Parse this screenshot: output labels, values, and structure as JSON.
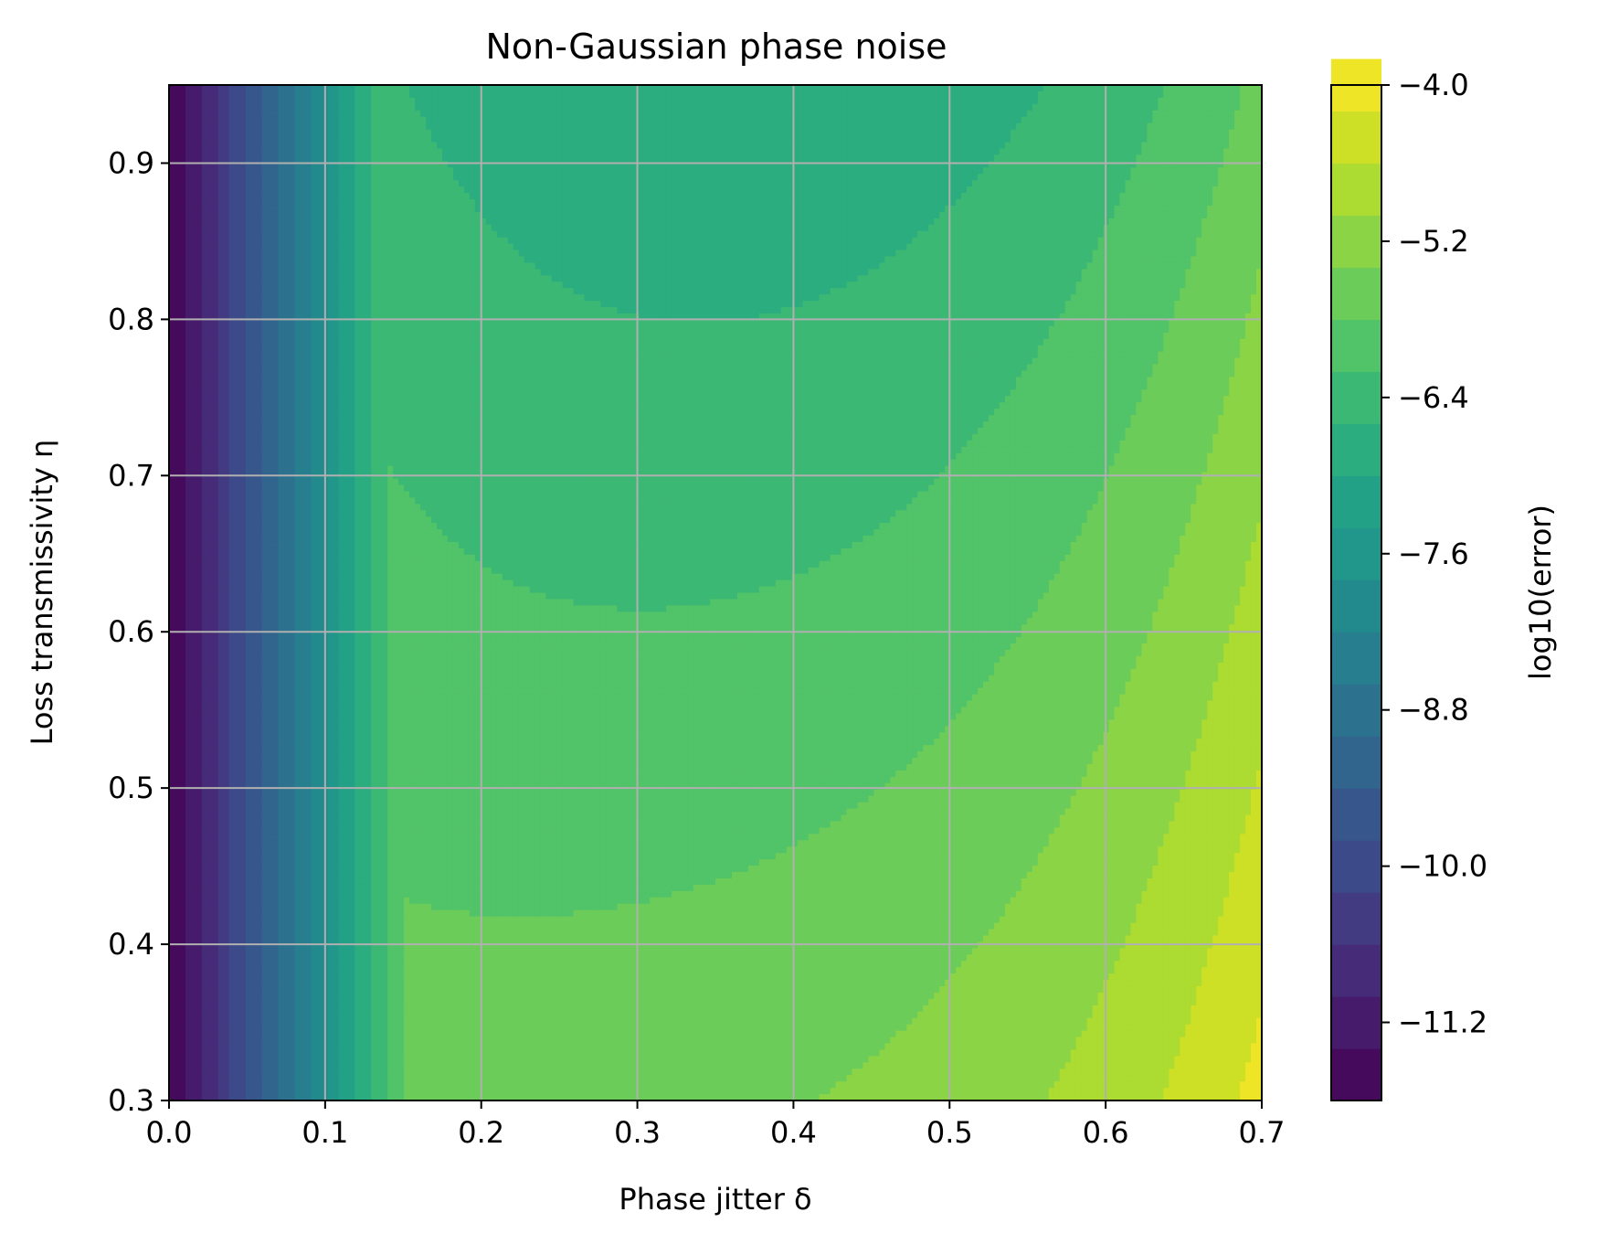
{
  "chart_data": {
    "type": "heatmap",
    "title": "Non-Gaussian phase noise",
    "xlabel": "Phase jitter δ",
    "ylabel": "Loss transmissivity η",
    "colorbar_label": "log10(error)",
    "xlim": [
      0.0,
      0.7
    ],
    "ylim": [
      0.3,
      0.95
    ],
    "x_ticks": [
      "0.0",
      "0.1",
      "0.2",
      "0.3",
      "0.4",
      "0.5",
      "0.6",
      "0.7"
    ],
    "y_ticks": [
      "0.3",
      "0.4",
      "0.5",
      "0.6",
      "0.7",
      "0.8",
      "0.9"
    ],
    "colorbar_ticks": [
      "−4.0",
      "−5.2",
      "−6.4",
      "−7.6",
      "−8.8",
      "−10.0",
      "−11.2"
    ],
    "colorbar_range": [
      -11.8,
      -4.0
    ],
    "levels_step": 0.4,
    "grid": true,
    "colormap": "viridis",
    "x": [
      0.0,
      0.05,
      0.1,
      0.15,
      0.2,
      0.25,
      0.3,
      0.35,
      0.4,
      0.45,
      0.5,
      0.55,
      0.6,
      0.65,
      0.7
    ],
    "y": [
      0.3,
      0.35,
      0.4,
      0.45,
      0.5,
      0.55,
      0.6,
      0.65,
      0.7,
      0.75,
      0.8,
      0.85,
      0.9,
      0.95
    ],
    "z_description": "log10(error) increases with phase jitter δ and decreases with loss transmissivity η; approx. −11.8 at δ=0, up to about −4.1 at δ=0.7, η=0.3",
    "z_anchor_points": [
      {
        "x": 0.0,
        "y": 0.3,
        "z": -11.8
      },
      {
        "x": 0.1,
        "y": 0.9,
        "z": -8.4
      },
      {
        "x": 0.2,
        "y": 0.9,
        "z": -7.6
      },
      {
        "x": 0.4,
        "y": 0.9,
        "z": -6.4
      },
      {
        "x": 0.7,
        "y": 0.9,
        "z": -5.2
      },
      {
        "x": 0.3,
        "y": 0.3,
        "z": -5.4
      },
      {
        "x": 0.5,
        "y": 0.3,
        "z": -4.6
      },
      {
        "x": 0.7,
        "y": 0.3,
        "z": -4.1
      }
    ]
  }
}
